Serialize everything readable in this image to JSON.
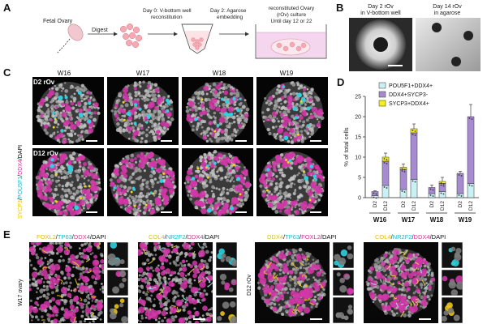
{
  "panels": {
    "a": "A",
    "b": "B",
    "c": "C",
    "d": "D",
    "e": "E"
  },
  "panel_a": {
    "fetal_ovary": "Fetal Ovary",
    "digest": "Digest",
    "day0": [
      "Day 0: V-bottom well",
      "reconstitution"
    ],
    "day2": [
      "Day 2: Agarose",
      "embedding"
    ],
    "rov": [
      "reconstituted Ovary",
      "(rOv) culture",
      "Until day 12 or 22"
    ]
  },
  "panel_b": {
    "left": [
      "Day 2 rOv",
      "in V-bottom well"
    ],
    "right": [
      "Day 14 rOv",
      "in agarose"
    ]
  },
  "panel_c": {
    "weeks": [
      "W16",
      "W17",
      "W18",
      "W19"
    ],
    "row1": "D2 rOv",
    "row2": "D12 rOv",
    "stain": [
      {
        "text": "SYCP3",
        "color": "#e8c21a"
      },
      {
        "text": "/",
        "color": "#111"
      },
      {
        "text": "POU5F1",
        "color": "#1db5c4"
      },
      {
        "text": "/",
        "color": "#111"
      },
      {
        "text": "DDX4",
        "color": "#d0349a"
      },
      {
        "text": "/DAPI",
        "color": "#111"
      }
    ]
  },
  "panel_e": {
    "side1": "W17 ovary",
    "side2": "D12 rOv",
    "titles": [
      [
        {
          "text": "FOXL2",
          "color": "#e8b71a"
        },
        {
          "text": "/",
          "color": "#111"
        },
        {
          "text": "TP63",
          "color": "#1db5c4"
        },
        {
          "text": "/",
          "color": "#111"
        },
        {
          "text": "DDX4",
          "color": "#d0349a"
        },
        {
          "text": "/DAPI",
          "color": "#111"
        }
      ],
      [
        {
          "text": "COL4",
          "color": "#e8b71a"
        },
        {
          "text": "/",
          "color": "#111"
        },
        {
          "text": "NR2F2",
          "color": "#1db5c4"
        },
        {
          "text": "/",
          "color": "#111"
        },
        {
          "text": "DDX4",
          "color": "#d0349a"
        },
        {
          "text": "/DAPI",
          "color": "#111"
        }
      ],
      [
        {
          "text": "DDX4",
          "color": "#e8b71a"
        },
        {
          "text": "/",
          "color": "#111"
        },
        {
          "text": "TP63",
          "color": "#1db5c4"
        },
        {
          "text": "/",
          "color": "#111"
        },
        {
          "text": "FOXL2",
          "color": "#d0349a"
        },
        {
          "text": "/DAPI",
          "color": "#111"
        }
      ],
      [
        {
          "text": "COL4",
          "color": "#e8b71a"
        },
        {
          "text": "/",
          "color": "#111"
        },
        {
          "text": "NR2F2",
          "color": "#1db5c4"
        },
        {
          "text": "/",
          "color": "#111"
        },
        {
          "text": "DDX4",
          "color": "#d0349a"
        },
        {
          "text": "/DAPI",
          "color": "#111"
        }
      ]
    ]
  },
  "chart_data": {
    "type": "bar",
    "ylabel": "% of total cells",
    "ylim": [
      0,
      25
    ],
    "yticks": [
      0,
      5,
      10,
      15,
      20,
      25
    ],
    "categories": [
      "D2",
      "D12",
      "D2",
      "D12",
      "D2",
      "D12",
      "D2",
      "D12"
    ],
    "groups": [
      "W16",
      "W17",
      "W18",
      "W19"
    ],
    "legend_position": "top-right",
    "series": [
      {
        "name": "POU5F1+DDX4+",
        "color": "#c9f1f4",
        "values": [
          0.5,
          3.0,
          2.0,
          4.5,
          1.0,
          1.5,
          1.0,
          3.5
        ]
      },
      {
        "name": "DDX4+SYCP3-",
        "color": "#a78bd1",
        "values": [
          1.0,
          6.0,
          5.0,
          11.5,
          1.5,
          2.0,
          5.0,
          16.5
        ]
      },
      {
        "name": "SYCP3+DDX4+",
        "color": "#f3ee1c",
        "values": [
          0.0,
          1.0,
          0.5,
          1.0,
          0.0,
          0.5,
          0.0,
          0.0
        ]
      }
    ]
  }
}
